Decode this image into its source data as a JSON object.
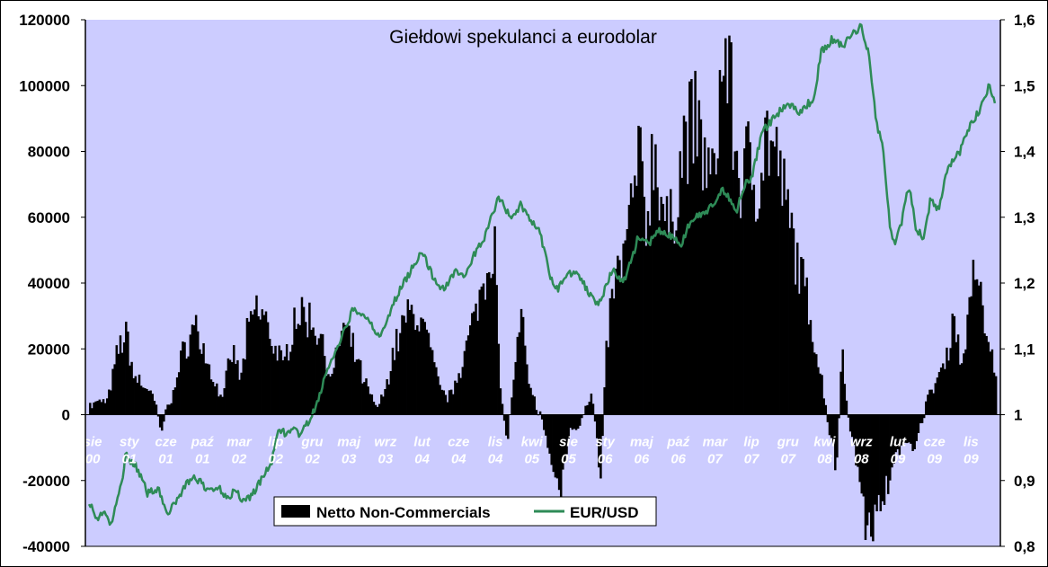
{
  "chart_data": {
    "type": "bar+line",
    "title": "Giełdowi spekulanci a eurodolar",
    "left_axis": {
      "min": -40000,
      "max": 120000,
      "ticks": [
        "-40000",
        "-20000",
        "0",
        "20000",
        "40000",
        "60000",
        "80000",
        "100000",
        "120000"
      ]
    },
    "right_axis": {
      "min": 0.8,
      "max": 1.6,
      "ticks": [
        "0,8",
        "0,9",
        "1",
        "1,1",
        "1,2",
        "1,3",
        "1,4",
        "1,5",
        "1,6"
      ]
    },
    "x_labels": [
      {
        "month": "sie",
        "year": "00"
      },
      {
        "month": "sty",
        "year": "01"
      },
      {
        "month": "cze",
        "year": "01"
      },
      {
        "month": "paź",
        "year": "01"
      },
      {
        "month": "mar",
        "year": "02"
      },
      {
        "month": "lip",
        "year": "02"
      },
      {
        "month": "gru",
        "year": "02"
      },
      {
        "month": "maj",
        "year": "03"
      },
      {
        "month": "wrz",
        "year": "03"
      },
      {
        "month": "lut",
        "year": "04"
      },
      {
        "month": "cze",
        "year": "04"
      },
      {
        "month": "lis",
        "year": "04"
      },
      {
        "month": "kwi",
        "year": "05"
      },
      {
        "month": "sie",
        "year": "05"
      },
      {
        "month": "sty",
        "year": "06"
      },
      {
        "month": "maj",
        "year": "06"
      },
      {
        "month": "paź",
        "year": "06"
      },
      {
        "month": "mar",
        "year": "07"
      },
      {
        "month": "lip",
        "year": "07"
      },
      {
        "month": "gru",
        "year": "07"
      },
      {
        "month": "kwi",
        "year": "08"
      },
      {
        "month": "wrz",
        "year": "08"
      },
      {
        "month": "lut",
        "year": "09"
      },
      {
        "month": "cze",
        "year": "09"
      },
      {
        "month": "lis",
        "year": "09"
      }
    ],
    "bar_anchors": [
      [
        0,
        3000
      ],
      [
        0.5,
        5000
      ],
      [
        0.8,
        22000
      ],
      [
        1,
        25000
      ],
      [
        1.2,
        12000
      ],
      [
        1.6,
        8000
      ],
      [
        1.8,
        3000
      ],
      [
        1.95,
        -5000
      ],
      [
        2.1,
        2000
      ],
      [
        2.3,
        8000
      ],
      [
        2.6,
        22000
      ],
      [
        2.9,
        28000
      ],
      [
        3.1,
        20000
      ],
      [
        3.4,
        10000
      ],
      [
        3.6,
        5000
      ],
      [
        3.8,
        15000
      ],
      [
        3.95,
        20000
      ],
      [
        4.1,
        10000
      ],
      [
        4.3,
        25000
      ],
      [
        4.5,
        33000
      ],
      [
        4.8,
        30000
      ],
      [
        5,
        22000
      ],
      [
        5.3,
        15000
      ],
      [
        5.6,
        32000
      ],
      [
        6,
        30000
      ],
      [
        6.3,
        25000
      ],
      [
        6.6,
        10000
      ],
      [
        6.9,
        28000
      ],
      [
        7.2,
        20000
      ],
      [
        7.5,
        10000
      ],
      [
        7.8,
        3000
      ],
      [
        8,
        5000
      ],
      [
        8.3,
        20000
      ],
      [
        8.6,
        30000
      ],
      [
        8.9,
        32000
      ],
      [
        9.2,
        25000
      ],
      [
        9.5,
        10000
      ],
      [
        9.8,
        5000
      ],
      [
        10.2,
        18000
      ],
      [
        10.5,
        30000
      ],
      [
        10.7,
        40000
      ],
      [
        10.9,
        50000
      ],
      [
        11.05,
        55000
      ],
      [
        11.2,
        10000
      ],
      [
        11.4,
        -10000
      ],
      [
        11.6,
        15000
      ],
      [
        11.8,
        30000
      ],
      [
        12,
        8000
      ],
      [
        12.3,
        0
      ],
      [
        12.6,
        -15000
      ],
      [
        12.85,
        -24000
      ],
      [
        13.1,
        -5000
      ],
      [
        13.4,
        -3000
      ],
      [
        13.7,
        8000
      ],
      [
        13.95,
        -20000
      ],
      [
        14.1,
        20000
      ],
      [
        14.3,
        40000
      ],
      [
        14.6,
        50000
      ],
      [
        15,
        80000
      ],
      [
        15.2,
        60000
      ],
      [
        15.4,
        85000
      ],
      [
        15.6,
        70000
      ],
      [
        15.8,
        55000
      ],
      [
        16,
        68000
      ],
      [
        16.2,
        85000
      ],
      [
        16.5,
        92000
      ],
      [
        16.8,
        80000
      ],
      [
        17,
        70000
      ],
      [
        17.2,
        100000
      ],
      [
        17.4,
        115000
      ],
      [
        17.6,
        85000
      ],
      [
        17.8,
        72000
      ],
      [
        18,
        80000
      ],
      [
        18.2,
        72000
      ],
      [
        18.5,
        88000
      ],
      [
        18.8,
        78000
      ],
      [
        19.1,
        60000
      ],
      [
        19.4,
        45000
      ],
      [
        19.7,
        30000
      ],
      [
        20,
        10000
      ],
      [
        20.2,
        -5000
      ],
      [
        20.4,
        -18000
      ],
      [
        20.55,
        25000
      ],
      [
        20.7,
        -2000
      ],
      [
        20.9,
        -10000
      ],
      [
        21.1,
        -28000
      ],
      [
        21.3,
        -38000
      ],
      [
        21.5,
        -30000
      ],
      [
        21.7,
        -25000
      ],
      [
        22,
        -15000
      ],
      [
        22.3,
        -8000
      ],
      [
        22.5,
        -10000
      ],
      [
        22.7,
        -3000
      ],
      [
        22.9,
        5000
      ],
      [
        23.1,
        10000
      ],
      [
        23.4,
        18000
      ],
      [
        23.6,
        32000
      ],
      [
        23.8,
        15000
      ],
      [
        24,
        30000
      ],
      [
        24.2,
        48000
      ],
      [
        24.4,
        30000
      ],
      [
        24.6,
        20000
      ],
      [
        24.75,
        15000
      ]
    ],
    "series": [
      {
        "name": "Netto Non-Commercials",
        "kind": "bar",
        "axis": "left",
        "color": "#000000",
        "values": []
      },
      {
        "name": "EUR/USD",
        "kind": "line",
        "axis": "right",
        "color": "#2e8b57",
        "anchors": [
          [
            0,
            0.87
          ],
          [
            0.2,
            0.84
          ],
          [
            0.4,
            0.855
          ],
          [
            0.6,
            0.83
          ],
          [
            0.9,
            0.9
          ],
          [
            1,
            0.94
          ],
          [
            1.3,
            0.92
          ],
          [
            1.6,
            0.88
          ],
          [
            1.9,
            0.89
          ],
          [
            2.1,
            0.85
          ],
          [
            2.3,
            0.86
          ],
          [
            2.6,
            0.89
          ],
          [
            2.8,
            0.905
          ],
          [
            3,
            0.9
          ],
          [
            3.2,
            0.885
          ],
          [
            3.5,
            0.89
          ],
          [
            3.8,
            0.875
          ],
          [
            4,
            0.885
          ],
          [
            4.2,
            0.87
          ],
          [
            4.4,
            0.875
          ],
          [
            4.7,
            0.9
          ],
          [
            5,
            0.93
          ],
          [
            5.2,
            0.98
          ],
          [
            5.4,
            0.97
          ],
          [
            5.6,
            0.975
          ],
          [
            5.8,
            0.97
          ],
          [
            6,
            0.99
          ],
          [
            6.2,
            1.01
          ],
          [
            6.4,
            1.05
          ],
          [
            6.6,
            1.08
          ],
          [
            6.8,
            1.1
          ],
          [
            7,
            1.13
          ],
          [
            7.2,
            1.16
          ],
          [
            7.4,
            1.15
          ],
          [
            7.6,
            1.15
          ],
          [
            7.8,
            1.13
          ],
          [
            8,
            1.12
          ],
          [
            8.2,
            1.15
          ],
          [
            8.4,
            1.18
          ],
          [
            8.6,
            1.2
          ],
          [
            8.9,
            1.23
          ],
          [
            9.1,
            1.25
          ],
          [
            9.3,
            1.22
          ],
          [
            9.5,
            1.2
          ],
          [
            9.7,
            1.19
          ],
          [
            10,
            1.22
          ],
          [
            10.3,
            1.21
          ],
          [
            10.5,
            1.24
          ],
          [
            10.8,
            1.27
          ],
          [
            11,
            1.3
          ],
          [
            11.2,
            1.33
          ],
          [
            11.4,
            1.31
          ],
          [
            11.6,
            1.3
          ],
          [
            11.8,
            1.32
          ],
          [
            12,
            1.3
          ],
          [
            12.3,
            1.28
          ],
          [
            12.6,
            1.21
          ],
          [
            12.8,
            1.19
          ],
          [
            13,
            1.21
          ],
          [
            13.3,
            1.22
          ],
          [
            13.6,
            1.19
          ],
          [
            13.9,
            1.17
          ],
          [
            14.1,
            1.19
          ],
          [
            14.3,
            1.22
          ],
          [
            14.6,
            1.2
          ],
          [
            14.9,
            1.25
          ],
          [
            15,
            1.27
          ],
          [
            15.3,
            1.26
          ],
          [
            15.6,
            1.28
          ],
          [
            15.9,
            1.27
          ],
          [
            16.2,
            1.26
          ],
          [
            16.4,
            1.29
          ],
          [
            16.6,
            1.3
          ],
          [
            16.9,
            1.31
          ],
          [
            17.1,
            1.32
          ],
          [
            17.3,
            1.34
          ],
          [
            17.5,
            1.33
          ],
          [
            17.7,
            1.31
          ],
          [
            17.9,
            1.35
          ],
          [
            18.1,
            1.36
          ],
          [
            18.4,
            1.43
          ],
          [
            18.7,
            1.45
          ],
          [
            19,
            1.47
          ],
          [
            19.2,
            1.47
          ],
          [
            19.4,
            1.46
          ],
          [
            19.6,
            1.47
          ],
          [
            19.8,
            1.48
          ],
          [
            20,
            1.55
          ],
          [
            20.3,
            1.57
          ],
          [
            20.6,
            1.56
          ],
          [
            20.9,
            1.58
          ],
          [
            21.1,
            1.59
          ],
          [
            21.3,
            1.55
          ],
          [
            21.5,
            1.45
          ],
          [
            21.7,
            1.4
          ],
          [
            21.9,
            1.28
          ],
          [
            22,
            1.26
          ],
          [
            22.2,
            1.29
          ],
          [
            22.4,
            1.35
          ],
          [
            22.6,
            1.28
          ],
          [
            22.8,
            1.27
          ],
          [
            23,
            1.33
          ],
          [
            23.2,
            1.31
          ],
          [
            23.4,
            1.36
          ],
          [
            23.6,
            1.39
          ],
          [
            23.8,
            1.4
          ],
          [
            24,
            1.43
          ],
          [
            24.2,
            1.45
          ],
          [
            24.4,
            1.47
          ],
          [
            24.6,
            1.5
          ],
          [
            24.75,
            1.47
          ]
        ]
      }
    ],
    "legend": {
      "position": "bottom-left"
    },
    "plot_background": "#ccccff",
    "grid": false
  }
}
